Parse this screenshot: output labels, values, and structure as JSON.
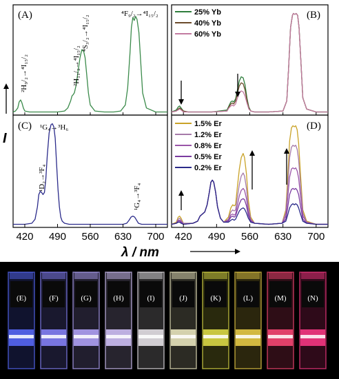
{
  "x_axis": {
    "label": "λ / nm",
    "ticks": [
      420,
      490,
      560,
      630,
      700
    ],
    "range": [
      395,
      725
    ]
  },
  "y_axis": {
    "label": "I"
  },
  "panels": [
    {
      "id": "A",
      "label": "(A)",
      "annotations": [
        {
          "text": "²H₉/₂→⁴I₁₅/₂",
          "x": 410
        },
        {
          "text": "²H₁₁/₂→⁴I₁₅/₂",
          "x": 523
        },
        {
          "text": "⁴S₃/₂→⁴I₁₅/₂",
          "x": 546
        },
        {
          "text": "⁴F₉/₂→⁴I₁₅/₂",
          "x": 654
        }
      ]
    },
    {
      "id": "B",
      "label": "(B)",
      "legend": [
        "25% Yb",
        "40% Yb",
        "60% Yb"
      ]
    },
    {
      "id": "C",
      "label": "(C)",
      "annotations": [
        {
          "text": "¹G₄→³H₆",
          "x": 478
        },
        {
          "text": "¹D₂→³F₄",
          "x": 452
        },
        {
          "text": "¹G₄→³F₄",
          "x": 651
        }
      ]
    },
    {
      "id": "D",
      "label": "(D)",
      "legend": [
        "1.5% Er",
        "1.2% Er",
        "0.8% Er",
        "0.5% Er",
        "0.2% Er"
      ]
    }
  ],
  "chart_data": [
    {
      "type": "line",
      "panel": "A",
      "xlabel": "λ / nm",
      "ylabel": "I",
      "xlim": [
        395,
        725
      ],
      "ylim": [
        0,
        1
      ],
      "series": [
        {
          "color": "#3a8a4a",
          "x": [
            395,
            400,
            405,
            408,
            411,
            414,
            417,
            420,
            430,
            450,
            470,
            490,
            505,
            512,
            518,
            521,
            523,
            526,
            530,
            534,
            538,
            542,
            546,
            549,
            552,
            556,
            560,
            570,
            590,
            610,
            625,
            635,
            640,
            645,
            648,
            651,
            654,
            657,
            660,
            664,
            668,
            672,
            680,
            700,
            725
          ],
          "y": [
            0.01,
            0.02,
            0.05,
            0.11,
            0.13,
            0.1,
            0.05,
            0.02,
            0.01,
            0.01,
            0.01,
            0.01,
            0.02,
            0.05,
            0.12,
            0.17,
            0.18,
            0.2,
            0.28,
            0.42,
            0.55,
            0.63,
            0.61,
            0.55,
            0.4,
            0.2,
            0.08,
            0.02,
            0.01,
            0.01,
            0.02,
            0.08,
            0.25,
            0.6,
            0.85,
            0.95,
            0.92,
            0.96,
            0.93,
            0.8,
            0.5,
            0.2,
            0.05,
            0.01,
            0.01
          ]
        }
      ]
    },
    {
      "type": "line",
      "panel": "B",
      "xlabel": "λ / nm",
      "ylabel": "I",
      "xlim": [
        395,
        725
      ],
      "ylim": [
        0,
        1
      ],
      "series": [
        {
          "name": "25% Yb",
          "color": "#2e7d3c",
          "x": [
            395,
            405,
            409,
            412,
            415,
            420,
            430,
            480,
            512,
            516,
            520,
            523,
            526,
            530,
            534,
            538,
            542,
            546,
            550,
            554,
            558,
            562,
            570,
            600,
            630,
            638,
            642,
            646,
            650,
            652,
            655,
            658,
            661,
            664,
            668,
            672,
            680,
            700,
            725
          ],
          "y": [
            0.01,
            0.03,
            0.06,
            0.07,
            0.05,
            0.02,
            0.01,
            0.01,
            0.03,
            0.07,
            0.11,
            0.12,
            0.11,
            0.14,
            0.23,
            0.32,
            0.36,
            0.35,
            0.28,
            0.15,
            0.06,
            0.02,
            0.01,
            0.01,
            0.02,
            0.12,
            0.45,
            0.85,
            0.97,
            0.99,
            0.98,
            0.99,
            0.97,
            0.85,
            0.5,
            0.15,
            0.04,
            0.01,
            0.01
          ]
        },
        {
          "name": "40% Yb",
          "color": "#6a4a2a",
          "x": [
            395,
            405,
            409,
            412,
            415,
            420,
            430,
            480,
            512,
            516,
            520,
            523,
            526,
            530,
            534,
            538,
            542,
            546,
            550,
            554,
            558,
            562,
            570,
            600,
            630,
            638,
            642,
            646,
            650,
            652,
            655,
            658,
            661,
            664,
            668,
            672,
            680,
            700,
            725
          ],
          "y": [
            0.01,
            0.02,
            0.04,
            0.05,
            0.04,
            0.02,
            0.01,
            0.01,
            0.02,
            0.06,
            0.09,
            0.1,
            0.09,
            0.12,
            0.2,
            0.27,
            0.3,
            0.29,
            0.23,
            0.13,
            0.05,
            0.02,
            0.01,
            0.01,
            0.02,
            0.12,
            0.45,
            0.85,
            0.97,
            0.99,
            0.98,
            0.99,
            0.97,
            0.85,
            0.5,
            0.15,
            0.04,
            0.01,
            0.01
          ]
        },
        {
          "name": "60% Yb",
          "color": "#c27aa0",
          "x": [
            395,
            405,
            409,
            412,
            415,
            420,
            430,
            480,
            512,
            516,
            520,
            523,
            526,
            530,
            534,
            538,
            542,
            546,
            550,
            554,
            558,
            562,
            570,
            600,
            630,
            638,
            642,
            646,
            650,
            652,
            655,
            658,
            661,
            664,
            668,
            672,
            680,
            700,
            725
          ],
          "y": [
            0.01,
            0.02,
            0.03,
            0.04,
            0.03,
            0.01,
            0.01,
            0.01,
            0.02,
            0.05,
            0.07,
            0.08,
            0.07,
            0.09,
            0.15,
            0.2,
            0.22,
            0.21,
            0.17,
            0.1,
            0.04,
            0.02,
            0.01,
            0.01,
            0.02,
            0.12,
            0.45,
            0.85,
            0.97,
            0.99,
            0.98,
            0.99,
            0.97,
            0.85,
            0.5,
            0.15,
            0.04,
            0.01,
            0.01
          ]
        }
      ]
    },
    {
      "type": "line",
      "panel": "C",
      "xlabel": "λ / nm",
      "ylabel": "I",
      "xlim": [
        395,
        725
      ],
      "ylim": [
        0,
        1
      ],
      "series": [
        {
          "color": "#2a2a8a",
          "x": [
            395,
            420,
            435,
            442,
            447,
            450,
            453,
            456,
            459,
            462,
            465,
            468,
            472,
            476,
            479,
            482,
            485,
            488,
            491,
            494,
            497,
            500,
            505,
            515,
            540,
            600,
            630,
            638,
            643,
            647,
            651,
            655,
            659,
            663,
            670,
            690,
            725
          ],
          "y": [
            0.01,
            0.01,
            0.02,
            0.06,
            0.18,
            0.3,
            0.33,
            0.32,
            0.3,
            0.32,
            0.45,
            0.68,
            0.9,
            0.98,
            0.99,
            0.96,
            0.85,
            0.6,
            0.35,
            0.18,
            0.08,
            0.04,
            0.02,
            0.01,
            0.01,
            0.01,
            0.01,
            0.02,
            0.05,
            0.08,
            0.09,
            0.08,
            0.05,
            0.02,
            0.01,
            0.01,
            0.01
          ]
        }
      ]
    },
    {
      "type": "line",
      "panel": "D",
      "xlabel": "λ / nm",
      "ylabel": "I",
      "xlim": [
        395,
        725
      ],
      "ylim": [
        0,
        1
      ],
      "series": [
        {
          "name": "1.5% Er",
          "color": "#c9a227",
          "x": [
            395,
            405,
            409,
            412,
            415,
            420,
            440,
            450,
            455,
            460,
            465,
            470,
            475,
            478,
            481,
            484,
            488,
            492,
            498,
            505,
            515,
            520,
            524,
            527,
            530,
            534,
            538,
            542,
            546,
            549,
            553,
            557,
            562,
            570,
            600,
            628,
            636,
            640,
            644,
            648,
            651,
            654,
            657,
            660,
            663,
            667,
            672,
            680,
            700,
            725
          ],
          "y": [
            0.01,
            0.03,
            0.08,
            0.09,
            0.07,
            0.02,
            0.02,
            0.04,
            0.09,
            0.11,
            0.13,
            0.2,
            0.33,
            0.42,
            0.44,
            0.42,
            0.32,
            0.18,
            0.07,
            0.03,
            0.08,
            0.17,
            0.2,
            0.19,
            0.2,
            0.38,
            0.55,
            0.66,
            0.7,
            0.66,
            0.5,
            0.25,
            0.08,
            0.02,
            0.01,
            0.02,
            0.15,
            0.45,
            0.82,
            0.95,
            0.97,
            0.96,
            0.97,
            0.93,
            0.8,
            0.5,
            0.15,
            0.04,
            0.01,
            0.01
          ]
        },
        {
          "name": "1.2% Er",
          "color": "#a57aa8",
          "x": [
            395,
            405,
            409,
            412,
            415,
            420,
            440,
            450,
            455,
            460,
            465,
            470,
            475,
            478,
            481,
            484,
            488,
            492,
            498,
            505,
            515,
            520,
            524,
            527,
            530,
            534,
            538,
            542,
            546,
            549,
            553,
            557,
            562,
            570,
            600,
            628,
            636,
            640,
            644,
            648,
            651,
            654,
            657,
            660,
            663,
            667,
            672,
            680,
            700,
            725
          ],
          "y": [
            0.01,
            0.02,
            0.06,
            0.07,
            0.05,
            0.02,
            0.02,
            0.04,
            0.09,
            0.11,
            0.13,
            0.2,
            0.33,
            0.42,
            0.44,
            0.42,
            0.32,
            0.18,
            0.07,
            0.03,
            0.06,
            0.13,
            0.15,
            0.14,
            0.15,
            0.28,
            0.4,
            0.48,
            0.51,
            0.48,
            0.36,
            0.18,
            0.06,
            0.02,
            0.01,
            0.02,
            0.12,
            0.36,
            0.66,
            0.76,
            0.78,
            0.77,
            0.78,
            0.74,
            0.64,
            0.4,
            0.12,
            0.03,
            0.01,
            0.01
          ]
        },
        {
          "name": "0.8% Er",
          "color": "#9a55a8",
          "x": [
            395,
            405,
            409,
            412,
            415,
            420,
            440,
            450,
            455,
            460,
            465,
            470,
            475,
            478,
            481,
            484,
            488,
            492,
            498,
            505,
            515,
            520,
            524,
            527,
            530,
            534,
            538,
            542,
            546,
            549,
            553,
            557,
            562,
            570,
            600,
            628,
            636,
            640,
            644,
            648,
            651,
            654,
            657,
            660,
            663,
            667,
            672,
            680,
            700,
            725
          ],
          "y": [
            0.01,
            0.02,
            0.05,
            0.05,
            0.04,
            0.01,
            0.02,
            0.04,
            0.09,
            0.11,
            0.13,
            0.2,
            0.33,
            0.42,
            0.44,
            0.42,
            0.32,
            0.18,
            0.07,
            0.03,
            0.05,
            0.1,
            0.11,
            0.1,
            0.11,
            0.2,
            0.29,
            0.34,
            0.36,
            0.34,
            0.26,
            0.13,
            0.05,
            0.02,
            0.01,
            0.02,
            0.09,
            0.26,
            0.47,
            0.55,
            0.56,
            0.55,
            0.56,
            0.53,
            0.46,
            0.29,
            0.09,
            0.03,
            0.01,
            0.01
          ]
        },
        {
          "name": "0.5% Er",
          "color": "#7a3aa0",
          "x": [
            395,
            405,
            409,
            412,
            415,
            420,
            440,
            450,
            455,
            460,
            465,
            470,
            475,
            478,
            481,
            484,
            488,
            492,
            498,
            505,
            515,
            520,
            524,
            527,
            530,
            534,
            538,
            542,
            546,
            549,
            553,
            557,
            562,
            570,
            600,
            628,
            636,
            640,
            644,
            648,
            651,
            654,
            657,
            660,
            663,
            667,
            672,
            680,
            700,
            725
          ],
          "y": [
            0.01,
            0.02,
            0.04,
            0.04,
            0.03,
            0.01,
            0.02,
            0.04,
            0.09,
            0.11,
            0.13,
            0.2,
            0.33,
            0.42,
            0.44,
            0.42,
            0.32,
            0.18,
            0.07,
            0.03,
            0.04,
            0.08,
            0.09,
            0.08,
            0.09,
            0.15,
            0.21,
            0.25,
            0.26,
            0.25,
            0.19,
            0.1,
            0.04,
            0.02,
            0.01,
            0.02,
            0.06,
            0.17,
            0.3,
            0.35,
            0.36,
            0.35,
            0.36,
            0.34,
            0.3,
            0.19,
            0.06,
            0.02,
            0.01,
            0.01
          ]
        },
        {
          "name": "0.2% Er",
          "color": "#2a2a8a",
          "x": [
            395,
            405,
            409,
            412,
            415,
            420,
            440,
            450,
            455,
            460,
            465,
            470,
            475,
            478,
            481,
            484,
            488,
            492,
            498,
            505,
            515,
            520,
            524,
            527,
            530,
            534,
            538,
            542,
            546,
            549,
            553,
            557,
            562,
            570,
            600,
            628,
            636,
            640,
            644,
            648,
            651,
            654,
            657,
            660,
            663,
            667,
            672,
            680,
            700,
            725
          ],
          "y": [
            0.01,
            0.02,
            0.03,
            0.03,
            0.02,
            0.01,
            0.02,
            0.04,
            0.09,
            0.11,
            0.13,
            0.2,
            0.33,
            0.42,
            0.44,
            0.42,
            0.32,
            0.18,
            0.07,
            0.03,
            0.03,
            0.05,
            0.06,
            0.05,
            0.06,
            0.1,
            0.14,
            0.16,
            0.17,
            0.16,
            0.12,
            0.07,
            0.03,
            0.02,
            0.01,
            0.02,
            0.04,
            0.1,
            0.17,
            0.2,
            0.21,
            0.2,
            0.21,
            0.2,
            0.17,
            0.11,
            0.04,
            0.02,
            0.01,
            0.01
          ]
        }
      ]
    }
  ],
  "photo": {
    "labels": [
      "(E)",
      "(F)",
      "(G)",
      "(H)",
      "(I)",
      "(J)",
      "(K)",
      "(L)",
      "(M)",
      "(N)"
    ],
    "glow_colors": [
      "#5a6cff",
      "#8a86ff",
      "#b6a8ff",
      "#d8c8ff",
      "#eeeaf0",
      "#f2eec6",
      "#e4e24a",
      "#f0d24a",
      "#ff4a78",
      "#ff3a88"
    ],
    "background": "#000000"
  }
}
